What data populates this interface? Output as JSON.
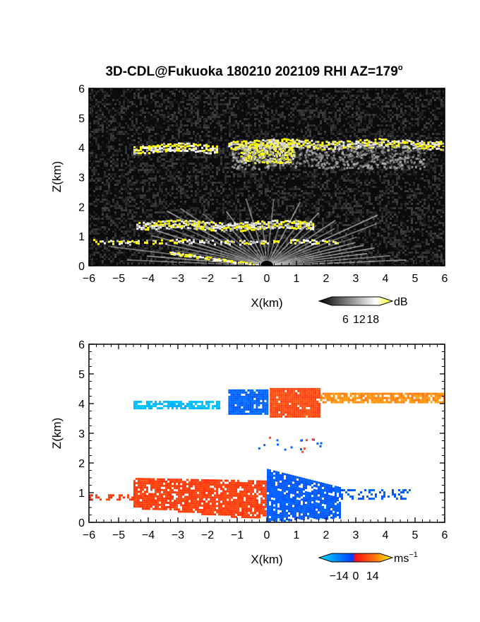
{
  "title": "3D-CDL@Fukuoka 180210 202109 RHI AZ=179",
  "title_sup": "o",
  "chart_data": [
    {
      "type": "heatmap",
      "variable": "reflectivity",
      "xlabel": "X(km)",
      "ylabel": "Z(km)",
      "xlim": [
        -6,
        6
      ],
      "ylim": [
        0,
        6
      ],
      "x_ticks": [
        "−6",
        "−5",
        "−4",
        "−3",
        "−2",
        "−1",
        "0",
        "1",
        "2",
        "3",
        "4",
        "5",
        "6"
      ],
      "y_ticks": [
        "0",
        "1",
        "2",
        "3",
        "4",
        "5",
        "6"
      ],
      "colorbar": {
        "unit": "dB",
        "ticks": [
          "6",
          "12",
          "18"
        ],
        "tick_values": [
          6,
          12,
          18
        ],
        "range": [
          0,
          21
        ],
        "colors": [
          "#000000",
          "#ffffff",
          "#ffff00"
        ]
      },
      "echo_layers": [
        {
          "x_from": -4.5,
          "x_to": -1.7,
          "z": 3.95,
          "strength": "strong"
        },
        {
          "x_from": -1.3,
          "x_to": 6.0,
          "z": 4.1,
          "strength": "strong"
        },
        {
          "x_from": -4.4,
          "x_to": 1.6,
          "z": 1.35,
          "strength": "strong"
        },
        {
          "x_from": -6.0,
          "x_to": 2.5,
          "z": 0.8,
          "strength": "weak"
        }
      ]
    },
    {
      "type": "heatmap",
      "variable": "doppler_velocity",
      "xlabel": "X(km)",
      "ylabel": "Z(km)",
      "xlim": [
        -6,
        6
      ],
      "ylim": [
        0,
        6
      ],
      "x_ticks": [
        "−6",
        "−5",
        "−4",
        "−3",
        "−2",
        "−1",
        "0",
        "1",
        "2",
        "3",
        "4",
        "5",
        "6"
      ],
      "y_ticks": [
        "0",
        "1",
        "2",
        "3",
        "4",
        "5",
        "6"
      ],
      "colorbar": {
        "unit": "ms",
        "unit_sup": "−1",
        "ticks": [
          "−14",
          "0",
          "14"
        ],
        "tick_values": [
          -14,
          0,
          14
        ],
        "range": [
          -20,
          20
        ],
        "colors": [
          "#00e0ff",
          "#0040ff",
          "#ff1010",
          "#ffff00"
        ]
      },
      "echo_layers": [
        {
          "x_from": -4.5,
          "x_to": -1.6,
          "z": 3.95,
          "velocity": -16
        },
        {
          "x_from": -1.3,
          "x_to": 0.0,
          "z": 4.05,
          "velocity": -6
        },
        {
          "x_from": 0.1,
          "x_to": 6.0,
          "z": 4.2,
          "velocity": 8
        },
        {
          "x_from": -6.0,
          "x_to": 0.0,
          "z": 1.0,
          "velocity": 5
        },
        {
          "x_from": 0.0,
          "x_to": 4.8,
          "z": 1.0,
          "velocity": -5
        }
      ]
    }
  ]
}
